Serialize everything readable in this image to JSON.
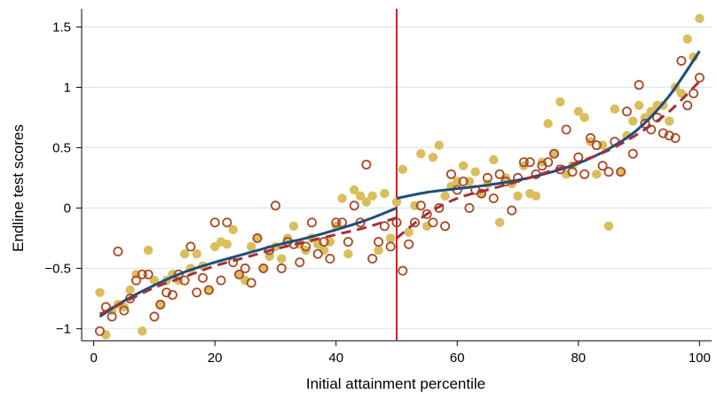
{
  "chart_data": {
    "type": "scatter",
    "xlabel": "Initial attainment percentile",
    "ylabel": "Endline test scores",
    "xlim": [
      -2,
      102
    ],
    "ylim": [
      -1.1,
      1.65
    ],
    "xticks": [
      0,
      20,
      40,
      60,
      80,
      100
    ],
    "yticks": [
      -1,
      -0.5,
      0,
      0.5,
      1,
      1.5
    ],
    "ytick_labels": [
      "−1",
      "−0.5",
      "0",
      "0.5",
      "1",
      "1.5"
    ],
    "grid": "horizontal",
    "legend": "none",
    "cutoff_x": 50,
    "colors": {
      "filled": "#D9BE5E",
      "hollow": "#A94A27",
      "solid_fit": "#1E4E79",
      "dashed_fit": "#A3303A",
      "cutoff_line": "#C0282E",
      "grid": "#DDE8EE"
    },
    "series": [
      {
        "marker": "filled-circle",
        "x": [
          1,
          2,
          3,
          4,
          5,
          6,
          7,
          8,
          9,
          10,
          11,
          12,
          13,
          14,
          15,
          16,
          17,
          18,
          19,
          20,
          21,
          22,
          23,
          24,
          25,
          26,
          27,
          28,
          29,
          30,
          31,
          32,
          33,
          34,
          35,
          36,
          37,
          38,
          39,
          40,
          41,
          42,
          43,
          44,
          45,
          46,
          47,
          48,
          49,
          50,
          51,
          52,
          53,
          54,
          55,
          56,
          57,
          58,
          59,
          60,
          61,
          62,
          63,
          64,
          65,
          66,
          67,
          68,
          69,
          70,
          71,
          72,
          73,
          74,
          75,
          76,
          77,
          78,
          79,
          80,
          81,
          82,
          83,
          84,
          85,
          86,
          87,
          88,
          89,
          90,
          91,
          92,
          93,
          94,
          95,
          96,
          97,
          98,
          99,
          100
        ],
        "y": [
          -0.7,
          -1.05,
          -0.85,
          -0.8,
          -0.82,
          -0.68,
          -0.55,
          -1.02,
          -0.35,
          -0.6,
          -0.8,
          -0.6,
          -0.55,
          -0.6,
          -0.38,
          -0.5,
          -0.38,
          -0.48,
          -0.68,
          -0.32,
          -0.28,
          -0.3,
          -0.18,
          -0.55,
          -0.6,
          -0.32,
          -0.25,
          -0.5,
          -0.4,
          -0.32,
          -0.42,
          -0.25,
          -0.15,
          -0.3,
          -0.35,
          -0.25,
          -0.3,
          -0.35,
          -0.28,
          -0.15,
          0.08,
          -0.38,
          0.15,
          0.1,
          0.05,
          0.1,
          -0.35,
          0.12,
          -0.25,
          0.05,
          0.32,
          -0.2,
          0.02,
          0.45,
          -0.15,
          0.42,
          0.52,
          0.1,
          0.18,
          0.22,
          0.35,
          0.22,
          0.3,
          0.12,
          0.2,
          0.4,
          -0.12,
          0.25,
          0.2,
          0.1,
          0.35,
          0.12,
          0.1,
          0.38,
          0.7,
          0.45,
          0.88,
          0.28,
          0.35,
          0.8,
          0.75,
          0.55,
          0.28,
          0.52,
          -0.15,
          0.82,
          0.3,
          0.6,
          0.72,
          0.85,
          0.75,
          0.8,
          0.85,
          0.85,
          0.72,
          1.0,
          0.95,
          1.4,
          1.25,
          1.57
        ]
      },
      {
        "marker": "hollow-circle",
        "x": [
          1,
          2,
          3,
          4,
          5,
          6,
          7,
          8,
          9,
          10,
          11,
          12,
          13,
          14,
          15,
          16,
          17,
          18,
          19,
          20,
          21,
          22,
          23,
          24,
          25,
          26,
          27,
          28,
          29,
          30,
          31,
          32,
          33,
          34,
          35,
          36,
          37,
          38,
          39,
          40,
          41,
          42,
          43,
          44,
          45,
          46,
          47,
          48,
          49,
          50,
          51,
          52,
          53,
          54,
          55,
          56,
          57,
          58,
          59,
          60,
          61,
          62,
          63,
          64,
          65,
          66,
          67,
          68,
          69,
          70,
          71,
          72,
          73,
          74,
          75,
          76,
          77,
          78,
          79,
          80,
          81,
          82,
          83,
          84,
          85,
          86,
          87,
          88,
          89,
          90,
          91,
          92,
          93,
          94,
          95,
          96,
          97,
          98,
          99,
          100
        ],
        "y": [
          -1.02,
          -0.82,
          -0.9,
          -0.36,
          -0.85,
          -0.75,
          -0.6,
          -0.55,
          -0.55,
          -0.9,
          -0.8,
          -0.7,
          -0.72,
          -0.55,
          -0.6,
          -0.32,
          -0.7,
          -0.58,
          -0.68,
          -0.12,
          -0.6,
          -0.12,
          -0.45,
          -0.55,
          -0.5,
          -0.62,
          -0.25,
          -0.5,
          -0.35,
          0.02,
          -0.5,
          -0.28,
          -0.3,
          -0.45,
          -0.32,
          -0.12,
          -0.38,
          -0.28,
          -0.42,
          -0.12,
          -0.12,
          -0.28,
          0.02,
          -0.12,
          0.36,
          -0.42,
          -0.28,
          -0.15,
          -0.32,
          -0.12,
          -0.52,
          -0.3,
          -0.12,
          0.02,
          -0.05,
          -0.12,
          0.0,
          -0.15,
          0.28,
          0.15,
          0.22,
          0.0,
          0.15,
          0.12,
          0.25,
          0.08,
          0.28,
          0.22,
          -0.02,
          0.25,
          0.38,
          0.38,
          0.28,
          0.35,
          0.38,
          0.45,
          0.32,
          0.65,
          0.3,
          0.42,
          0.28,
          0.58,
          0.52,
          0.35,
          0.3,
          0.55,
          0.3,
          0.8,
          0.45,
          1.02,
          0.7,
          0.65,
          0.75,
          0.62,
          0.6,
          0.58,
          1.22,
          0.85,
          0.95,
          1.08
        ]
      }
    ],
    "fit_lines": [
      {
        "style": "solid",
        "segment": "left",
        "x": [
          1,
          5,
          10,
          15,
          20,
          25,
          30,
          35,
          40,
          45,
          50
        ],
        "y": [
          -0.9,
          -0.77,
          -0.64,
          -0.53,
          -0.45,
          -0.38,
          -0.31,
          -0.25,
          -0.18,
          -0.1,
          0.0
        ]
      },
      {
        "style": "solid",
        "segment": "right",
        "x": [
          50,
          55,
          60,
          65,
          70,
          75,
          80,
          85,
          90,
          95,
          100
        ],
        "y": [
          0.08,
          0.13,
          0.16,
          0.19,
          0.23,
          0.29,
          0.37,
          0.49,
          0.66,
          0.93,
          1.3
        ]
      },
      {
        "style": "dashed",
        "segment": "left",
        "x": [
          1,
          5,
          10,
          15,
          20,
          25,
          30,
          35,
          40,
          45,
          50
        ],
        "y": [
          -0.88,
          -0.78,
          -0.66,
          -0.57,
          -0.48,
          -0.41,
          -0.34,
          -0.28,
          -0.22,
          -0.16,
          -0.08
        ]
      },
      {
        "style": "dashed",
        "segment": "right",
        "x": [
          50,
          55,
          60,
          65,
          70,
          75,
          80,
          85,
          90,
          95,
          100
        ],
        "y": [
          -0.25,
          -0.05,
          0.08,
          0.15,
          0.22,
          0.3,
          0.38,
          0.48,
          0.62,
          0.8,
          1.05
        ]
      }
    ]
  }
}
